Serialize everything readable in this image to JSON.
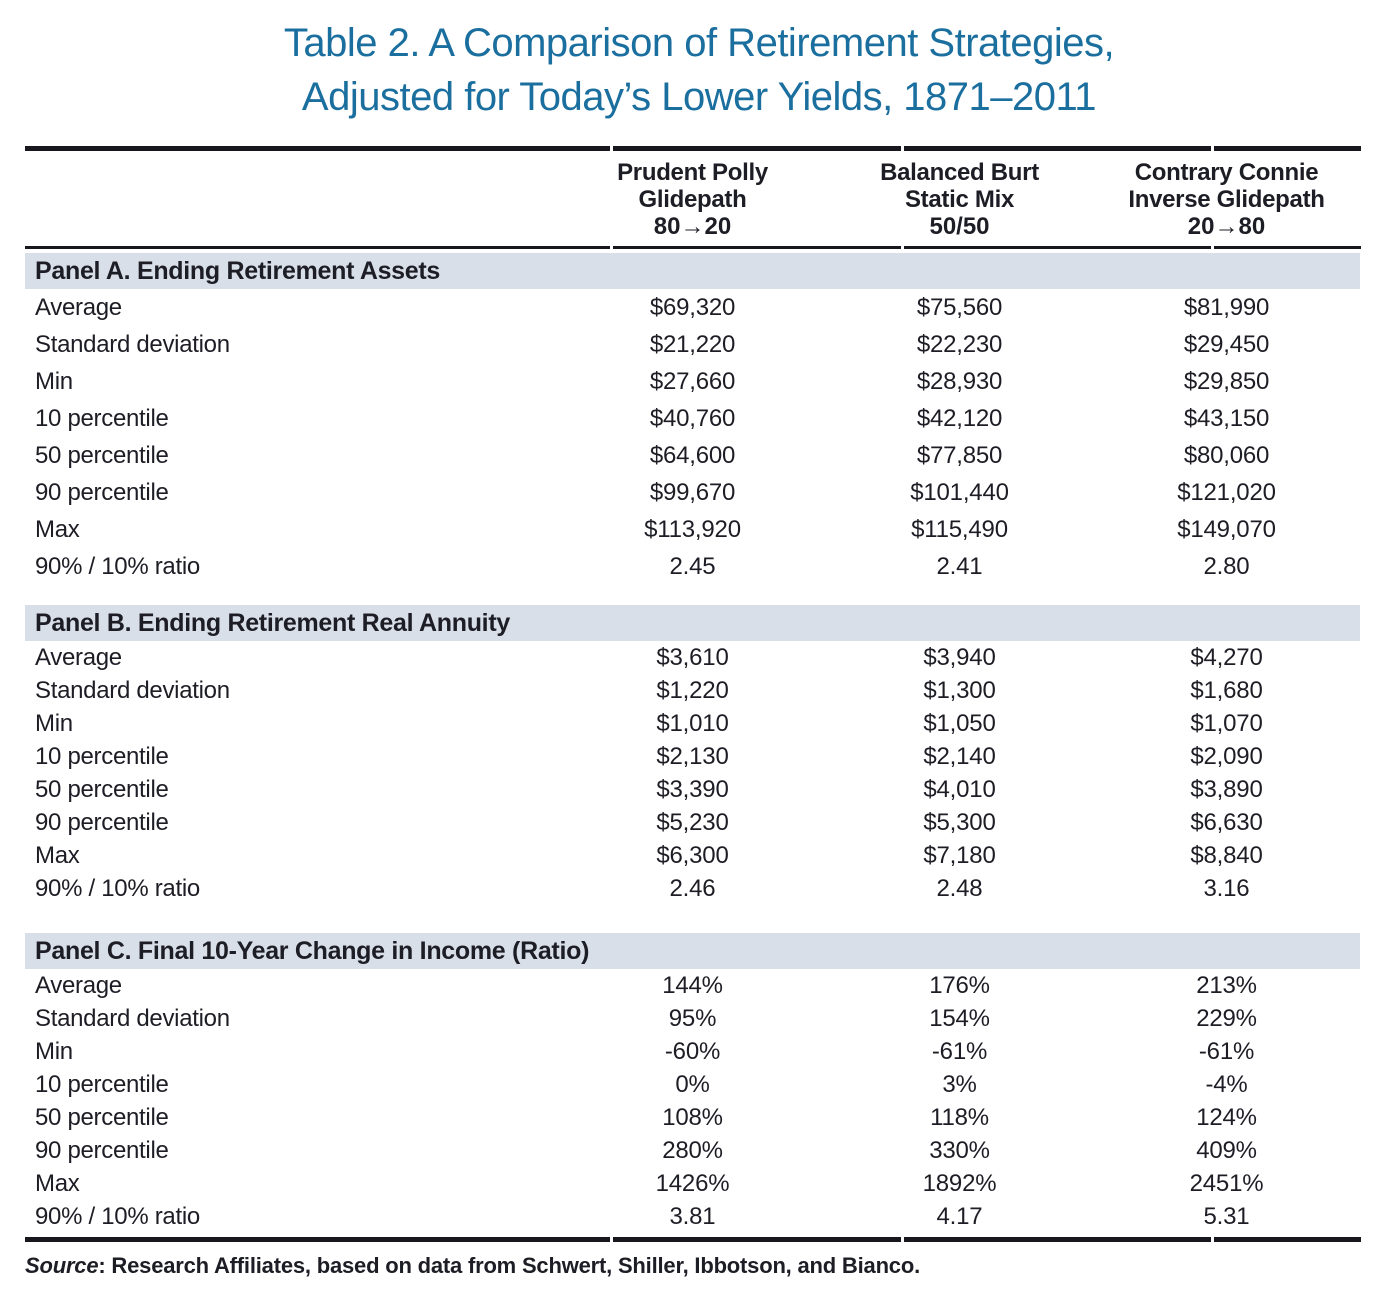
{
  "title": {
    "line1": "Table 2. A Comparison of Retirement Strategies,",
    "line2": "Adjusted for Today’s Lower Yields, 1871–2011"
  },
  "colors": {
    "title_blue": "#1b6f9f",
    "panel_band": "#d9dfe9",
    "rule": "#17171d",
    "text": "#1d1d25"
  },
  "table": {
    "columns": [
      {
        "name": "Prudent Polly",
        "style": "Glidepath",
        "alloc": "80→20"
      },
      {
        "name": "Balanced Burt",
        "style": "Static Mix",
        "alloc": "50/50"
      },
      {
        "name": "Contrary Connie",
        "style": "Inverse Glidepath",
        "alloc": "20→80"
      }
    ],
    "panels": [
      {
        "title": "Panel A. Ending Retirement Assets",
        "rows": [
          {
            "label": "Average",
            "values": [
              "$69,320",
              "$75,560",
              "$81,990"
            ]
          },
          {
            "label": "Standard deviation",
            "values": [
              "$21,220",
              "$22,230",
              "$29,450"
            ]
          },
          {
            "label": "Min",
            "values": [
              "$27,660",
              "$28,930",
              "$29,850"
            ]
          },
          {
            "label": "10 percentile",
            "values": [
              "$40,760",
              "$42,120",
              "$43,150"
            ]
          },
          {
            "label": "50 percentile",
            "values": [
              "$64,600",
              "$77,850",
              "$80,060"
            ]
          },
          {
            "label": "90 percentile",
            "values": [
              "$99,670",
              "$101,440",
              "$121,020"
            ]
          },
          {
            "label": "Max",
            "values": [
              "$113,920",
              "$115,490",
              "$149,070"
            ]
          },
          {
            "label": "90% / 10% ratio",
            "values": [
              "2.45",
              "2.41",
              "2.80"
            ]
          }
        ]
      },
      {
        "title": "Panel B. Ending Retirement Real Annuity",
        "rows": [
          {
            "label": "Average",
            "values": [
              "$3,610",
              "$3,940",
              "$4,270"
            ]
          },
          {
            "label": "Standard deviation",
            "values": [
              "$1,220",
              "$1,300",
              "$1,680"
            ]
          },
          {
            "label": "Min",
            "values": [
              "$1,010",
              "$1,050",
              "$1,070"
            ]
          },
          {
            "label": "10 percentile",
            "values": [
              "$2,130",
              "$2,140",
              "$2,090"
            ]
          },
          {
            "label": "50 percentile",
            "values": [
              "$3,390",
              "$4,010",
              "$3,890"
            ]
          },
          {
            "label": "90 percentile",
            "values": [
              "$5,230",
              "$5,300",
              "$6,630"
            ]
          },
          {
            "label": "Max",
            "values": [
              "$6,300",
              "$7,180",
              "$8,840"
            ]
          },
          {
            "label": "90% / 10% ratio",
            "values": [
              "2.46",
              "2.48",
              "3.16"
            ]
          }
        ]
      },
      {
        "title": "Panel C. Final 10-Year Change in Income (Ratio)",
        "rows": [
          {
            "label": "Average",
            "values": [
              "144%",
              "176%",
              "213%"
            ]
          },
          {
            "label": "Standard deviation",
            "values": [
              "95%",
              "154%",
              "229%"
            ]
          },
          {
            "label": "Min",
            "values": [
              "-60%",
              "-61%",
              "-61%"
            ]
          },
          {
            "label": "10 percentile",
            "values": [
              "0%",
              "3%",
              "-4%"
            ]
          },
          {
            "label": "50 percentile",
            "values": [
              "108%",
              "118%",
              "124%"
            ]
          },
          {
            "label": "90 percentile",
            "values": [
              "280%",
              "330%",
              "409%"
            ]
          },
          {
            "label": "Max",
            "values": [
              "1426%",
              "1892%",
              "2451%"
            ]
          },
          {
            "label": "90% / 10% ratio",
            "values": [
              "3.81",
              "4.17",
              "5.31"
            ]
          }
        ]
      }
    ]
  },
  "source": {
    "prefix": "Source",
    "rest": ": Research Affiliates, based on data from Schwert, Shiller, Ibbotson, and Bianco."
  }
}
